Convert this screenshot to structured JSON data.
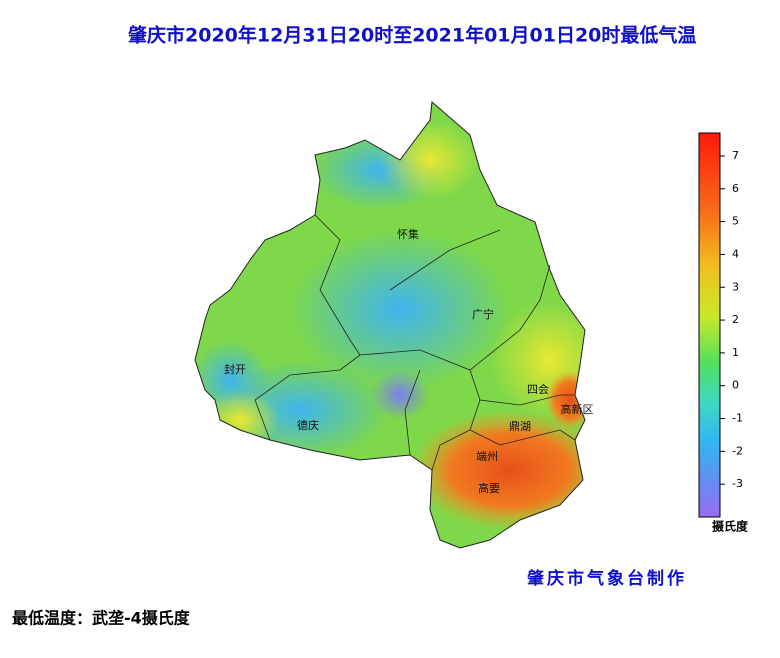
{
  "title": "肇庆市2020年12月31日20时至2021年01月01日20时最低气温",
  "map": {
    "labels": [
      "怀集",
      "广宁",
      "封开",
      "德庆",
      "四会",
      "鼎湖",
      "端州",
      "高要",
      "高新区"
    ]
  },
  "colorbar": {
    "range": [
      -4,
      7.7
    ],
    "ticks": [
      7,
      6,
      5,
      4,
      3,
      2,
      1,
      0,
      -1,
      -2,
      -3
    ],
    "unit": "摄氏度"
  },
  "credit": "肇庆市气象台制作",
  "footer": "最低温度：武垄-4摄氏度"
}
